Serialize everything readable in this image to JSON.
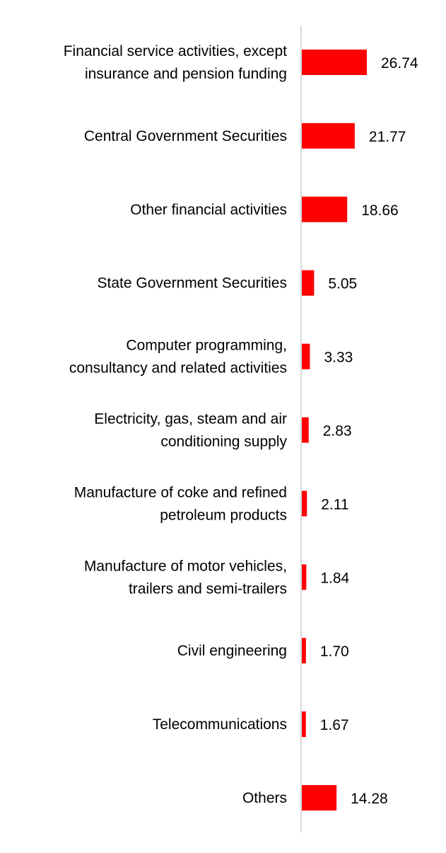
{
  "chart_data": {
    "type": "bar",
    "orientation": "horizontal",
    "title": "",
    "xlabel": "",
    "ylabel": "",
    "grid": false,
    "legend": "none",
    "categories": [
      "Financial service activities, except insurance and pension funding",
      "Central Government Securities",
      "Other financial activities",
      "State Government Securities",
      "Computer programming, consultancy and related activities",
      "Electricity, gas, steam and air conditioning supply",
      "Manufacture of coke and refined petroleum products",
      "Manufacture of motor vehicles, trailers and semi-trailers",
      "Civil engineering",
      "Telecommunications",
      "Others"
    ],
    "category_lines": [
      [
        "Financial service activities, except",
        "insurance and pension funding"
      ],
      [
        "Central Government Securities"
      ],
      [
        "Other financial activities"
      ],
      [
        "State Government Securities"
      ],
      [
        "Computer programming,",
        "consultancy and related activities"
      ],
      [
        "Electricity, gas, steam and air",
        "conditioning supply"
      ],
      [
        "Manufacture of coke and refined",
        "petroleum products"
      ],
      [
        "Manufacture of motor vehicles,",
        "trailers and semi-trailers"
      ],
      [
        "Civil engineering"
      ],
      [
        "Telecommunications"
      ],
      [
        "Others"
      ]
    ],
    "values": [
      26.74,
      21.77,
      18.66,
      5.05,
      3.33,
      2.83,
      2.11,
      1.84,
      1.7,
      1.67,
      14.28
    ],
    "value_labels": [
      "26.74",
      "21.77",
      "18.66",
      "5.05",
      "3.33",
      "2.83",
      "2.11",
      "1.84",
      "1.70",
      "1.67",
      "14.28"
    ],
    "xlim": [
      0,
      30
    ]
  },
  "colors": {
    "bar": "#ff0000",
    "axis": "#d9d9d9",
    "text": "#000000",
    "background": "#ffffff"
  }
}
